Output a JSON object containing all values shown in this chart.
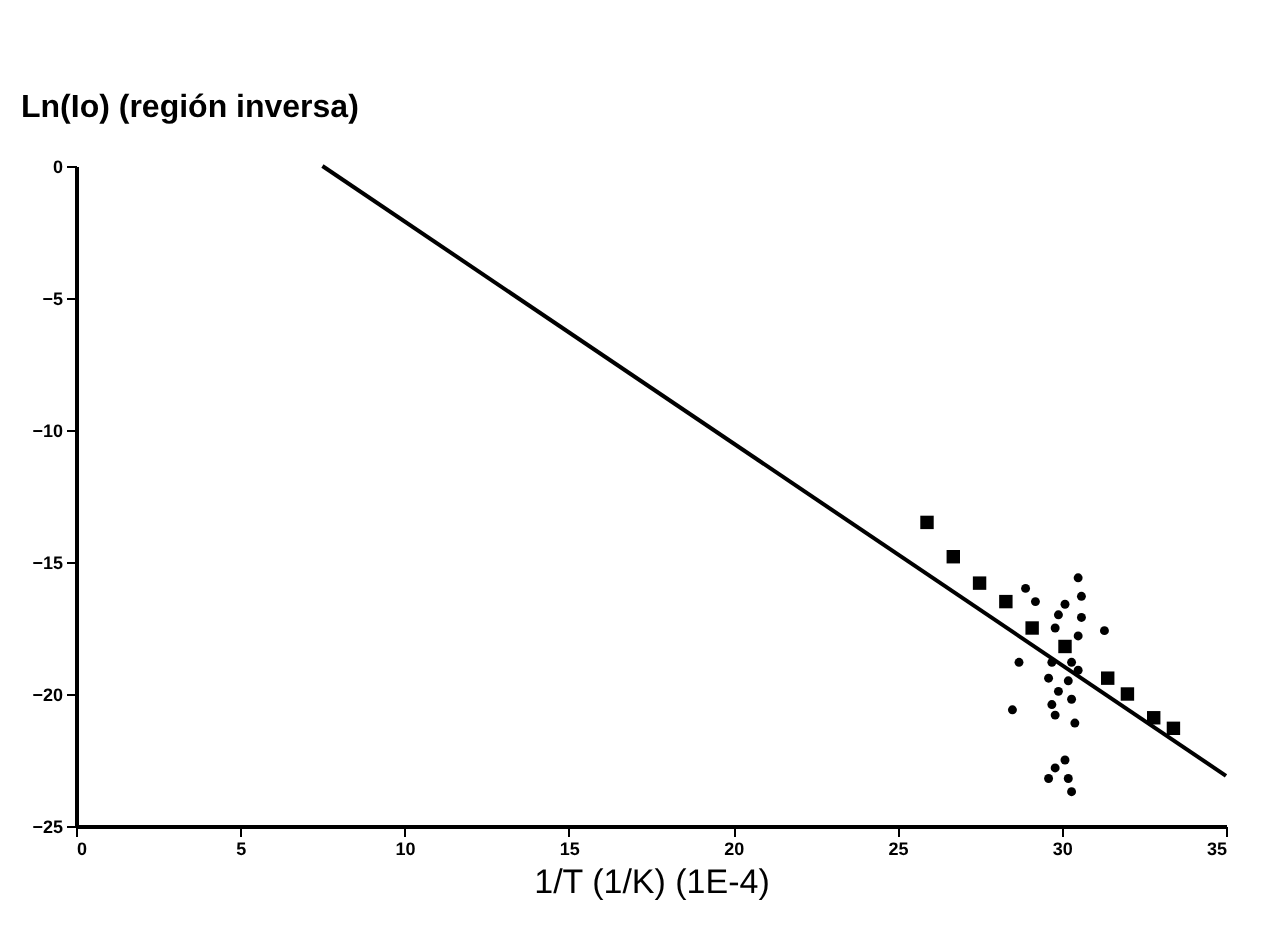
{
  "chart_data": {
    "type": "scatter",
    "xlabel": "1/T (1/K) (1E-4)",
    "ylabel": "Ln(Io) (región inversa)",
    "xlim": [
      0,
      35
    ],
    "xticks": [
      0,
      5,
      10,
      15,
      20,
      25,
      30,
      35
    ],
    "ylim": [
      -25,
      0
    ],
    "yticks": [
      0,
      -5,
      -10,
      -15,
      -20,
      -25
    ],
    "grid": false,
    "series": [
      {
        "type": "line",
        "color": "#000000",
        "marker": "none",
        "line_style": "solid",
        "x": [
          7.5,
          35
        ],
        "values": [
          0,
          -23.1
        ]
      },
      {
        "color": "#000000",
        "marker": "square",
        "x": [
          25.9,
          26.7,
          27.5,
          28.3,
          29.1,
          30.1,
          31.4,
          32.0,
          32.8,
          33.4
        ],
        "values": [
          -13.5,
          -14.8,
          -15.8,
          -16.5,
          -17.5,
          -18.2,
          -19.4,
          -20.0,
          -20.9,
          -21.3
        ]
      },
      {
        "color": "#000000",
        "marker": "circle",
        "x": [
          28.9,
          29.2,
          30.5,
          30.6,
          30.1,
          29.9,
          30.6,
          29.8,
          30.5,
          31.3,
          28.7,
          29.7,
          30.3,
          29.6,
          30.2,
          30.5,
          29.9,
          30.3,
          29.7,
          30.4,
          29.8,
          28.5,
          30.1,
          29.8,
          30.2,
          30.3,
          29.6
        ],
        "values": [
          -16.0,
          -16.5,
          -15.6,
          -16.3,
          -16.6,
          -17.0,
          -17.1,
          -17.5,
          -17.8,
          -17.6,
          -18.8,
          -18.8,
          -18.8,
          -19.4,
          -19.5,
          -19.1,
          -19.9,
          -20.2,
          -20.4,
          -21.1,
          -20.8,
          -20.6,
          -22.5,
          -22.8,
          -23.2,
          -23.7,
          -23.2
        ]
      }
    ]
  }
}
